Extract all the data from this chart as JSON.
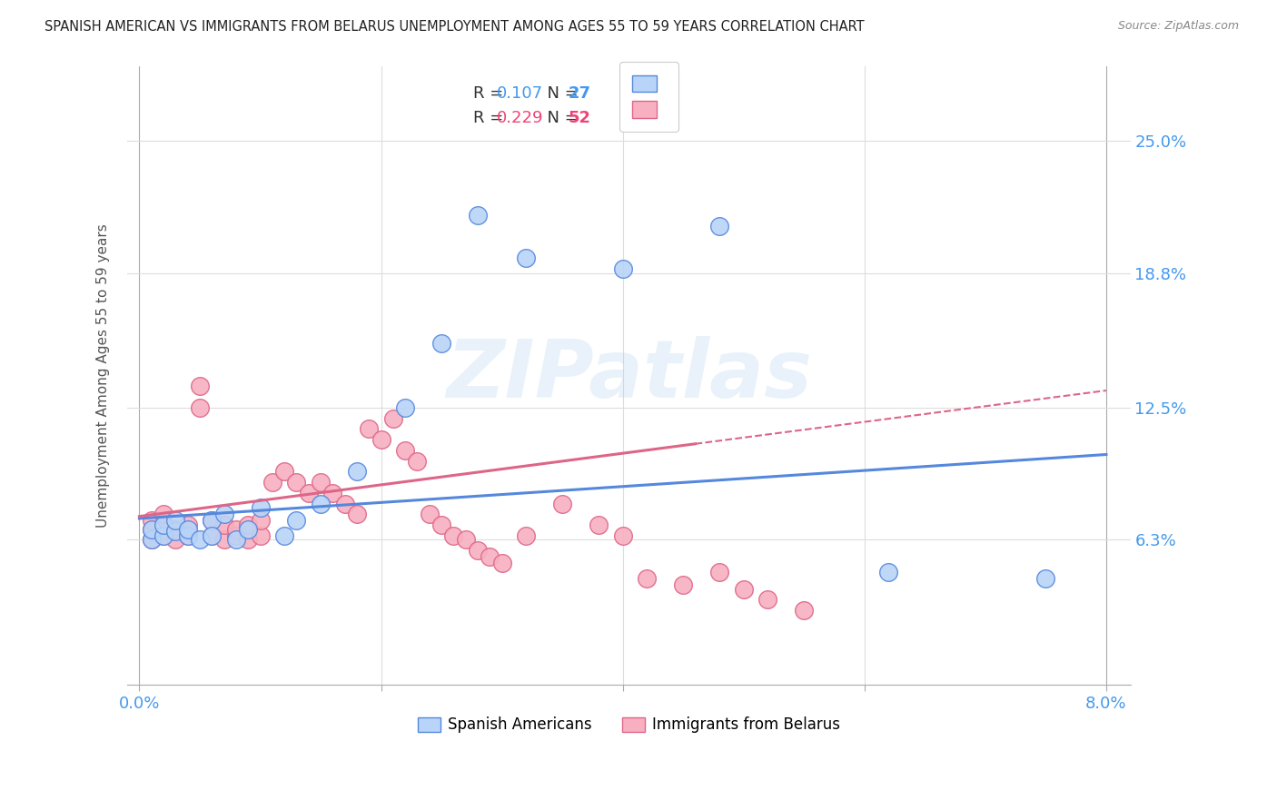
{
  "title": "SPANISH AMERICAN VS IMMIGRANTS FROM BELARUS UNEMPLOYMENT AMONG AGES 55 TO 59 YEARS CORRELATION CHART",
  "source": "Source: ZipAtlas.com",
  "ylabel": "Unemployment Among Ages 55 to 59 years",
  "ytick_labels": [
    "25.0%",
    "18.8%",
    "12.5%",
    "6.3%"
  ],
  "ytick_values": [
    0.25,
    0.188,
    0.125,
    0.063
  ],
  "xlim": [
    0.0,
    0.08
  ],
  "ylim": [
    0.0,
    0.28
  ],
  "color_blue": "#b8d4f8",
  "color_pink": "#f8b0c0",
  "color_blue_edge": "#5588dd",
  "color_pink_edge": "#dd6688",
  "color_blue_line": "#5588dd",
  "color_pink_line": "#dd6688",
  "color_blue_text": "#4499ee",
  "color_pink_text": "#ee4477",
  "blue_line_x0": 0.0,
  "blue_line_y0": 0.073,
  "blue_line_x1": 0.08,
  "blue_line_y1": 0.103,
  "pink_line_x0": 0.0,
  "pink_line_y0": 0.074,
  "pink_line_x1_solid": 0.046,
  "pink_line_y1_solid": 0.108,
  "pink_line_x1_dash": 0.08,
  "pink_line_y1_dash": 0.133,
  "spanish_x": [
    0.001,
    0.001,
    0.002,
    0.002,
    0.003,
    0.003,
    0.004,
    0.004,
    0.005,
    0.006,
    0.006,
    0.007,
    0.008,
    0.009,
    0.01,
    0.012,
    0.013,
    0.015,
    0.018,
    0.022,
    0.025,
    0.028,
    0.032,
    0.04,
    0.048,
    0.062,
    0.075
  ],
  "spanish_y": [
    0.063,
    0.068,
    0.065,
    0.07,
    0.067,
    0.072,
    0.065,
    0.068,
    0.063,
    0.072,
    0.065,
    0.075,
    0.063,
    0.068,
    0.078,
    0.065,
    0.072,
    0.08,
    0.095,
    0.125,
    0.155,
    0.215,
    0.195,
    0.19,
    0.21,
    0.048,
    0.045
  ],
  "belarus_x": [
    0.001,
    0.001,
    0.001,
    0.002,
    0.002,
    0.002,
    0.003,
    0.003,
    0.004,
    0.004,
    0.005,
    0.005,
    0.006,
    0.006,
    0.007,
    0.007,
    0.008,
    0.008,
    0.009,
    0.009,
    0.01,
    0.01,
    0.011,
    0.012,
    0.013,
    0.014,
    0.015,
    0.016,
    0.017,
    0.018,
    0.019,
    0.02,
    0.021,
    0.022,
    0.023,
    0.024,
    0.025,
    0.026,
    0.027,
    0.028,
    0.029,
    0.03,
    0.032,
    0.035,
    0.038,
    0.04,
    0.042,
    0.045,
    0.048,
    0.05,
    0.052,
    0.055
  ],
  "belarus_y": [
    0.063,
    0.068,
    0.072,
    0.065,
    0.07,
    0.075,
    0.063,
    0.068,
    0.065,
    0.07,
    0.135,
    0.125,
    0.065,
    0.072,
    0.063,
    0.07,
    0.065,
    0.068,
    0.063,
    0.07,
    0.065,
    0.072,
    0.09,
    0.095,
    0.09,
    0.085,
    0.09,
    0.085,
    0.08,
    0.075,
    0.115,
    0.11,
    0.12,
    0.105,
    0.1,
    0.075,
    0.07,
    0.065,
    0.063,
    0.058,
    0.055,
    0.052,
    0.065,
    0.08,
    0.07,
    0.065,
    0.045,
    0.042,
    0.048,
    0.04,
    0.035,
    0.03
  ]
}
